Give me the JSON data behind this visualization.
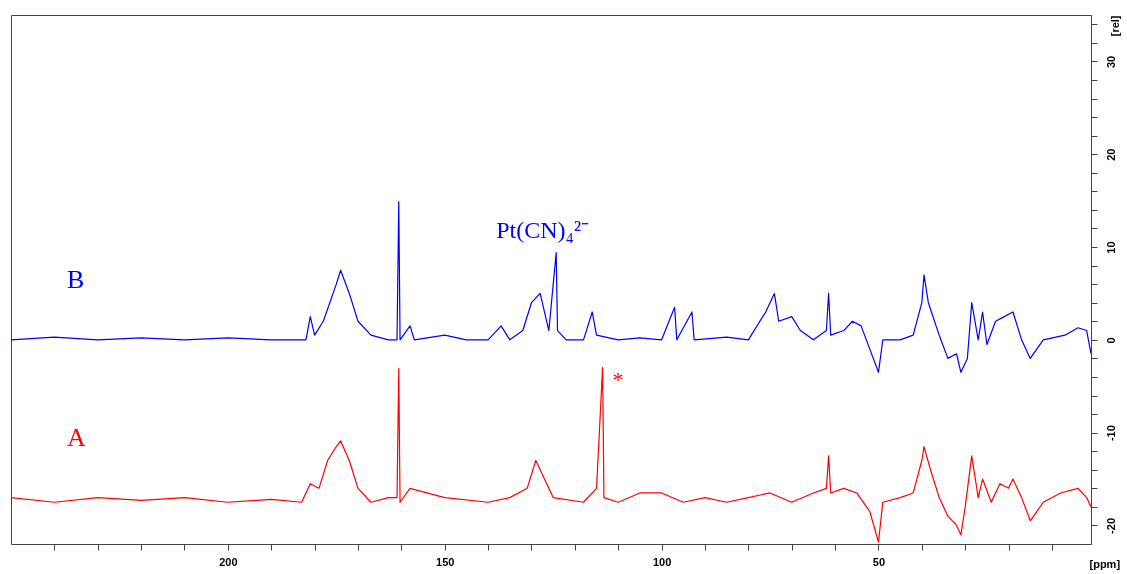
{
  "chart_data": {
    "type": "line",
    "xlabel": "[ppm]",
    "ylabel": "[rel]",
    "xlim": [
      250,
      1
    ],
    "ylim": [
      -22,
      35
    ],
    "xticks": [
      {
        "value": 240,
        "label": null
      },
      {
        "value": 230,
        "label": null
      },
      {
        "value": 220,
        "label": null
      },
      {
        "value": 210,
        "label": null
      },
      200,
      {
        "value": 190,
        "label": null
      },
      {
        "value": 180,
        "label": null
      },
      {
        "value": 170,
        "label": null
      },
      {
        "value": 160,
        "label": null
      },
      150,
      {
        "value": 140,
        "label": null
      },
      {
        "value": 130,
        "label": null
      },
      {
        "value": 120,
        "label": null
      },
      {
        "value": 110,
        "label": null
      },
      100,
      {
        "value": 90,
        "label": null
      },
      {
        "value": 80,
        "label": null
      },
      {
        "value": 70,
        "label": null
      },
      {
        "value": 60,
        "label": null
      },
      50,
      {
        "value": 40,
        "label": null
      },
      {
        "value": 30,
        "label": null
      },
      {
        "value": 20,
        "label": null
      },
      {
        "value": 10,
        "label": null
      }
    ],
    "yticks": [
      -20,
      {
        "value": -18,
        "label": null
      },
      {
        "value": -16,
        "label": null
      },
      {
        "value": -14,
        "label": null
      },
      {
        "value": -12,
        "label": null
      },
      -10,
      {
        "value": -8,
        "label": null
      },
      {
        "value": -6,
        "label": null
      },
      {
        "value": -4,
        "label": null
      },
      {
        "value": -2,
        "label": null
      },
      0,
      {
        "value": 2,
        "label": null
      },
      {
        "value": 4,
        "label": null
      },
      {
        "value": 6,
        "label": null
      },
      {
        "value": 8,
        "label": null
      },
      10,
      {
        "value": 12,
        "label": null
      },
      {
        "value": 14,
        "label": null
      },
      {
        "value": 16,
        "label": null
      },
      {
        "value": 18,
        "label": null
      },
      20,
      {
        "value": 22,
        "label": null
      },
      {
        "value": 24,
        "label": null
      },
      {
        "value": 26,
        "label": null
      },
      {
        "value": 28,
        "label": null
      },
      30,
      {
        "value": 32,
        "label": null
      },
      {
        "value": 34,
        "label": null
      }
    ],
    "grid": false,
    "legend": false,
    "marker": "none",
    "line_style": "solid",
    "annotations": [
      {
        "text": "Pt(CN)₄²⁻",
        "x": 124.3,
        "y": 9.4
      },
      {
        "text": "*",
        "x": 113.6,
        "y": -3.0
      }
    ],
    "series": [
      {
        "name": "B",
        "color": "#0000ff",
        "x": [
          250,
          240,
          230,
          220,
          210,
          200,
          190,
          182,
          181,
          180,
          178,
          175,
          174,
          172,
          170,
          167,
          163,
          161,
          160.6,
          160.3,
          158,
          157,
          150,
          145,
          140,
          137,
          135,
          132,
          130,
          128,
          126,
          124.3,
          124,
          122,
          118,
          116,
          115,
          110,
          105,
          100,
          97,
          96.5,
          93,
          92.5,
          85,
          80,
          76,
          75,
          74,
          73,
          70,
          68,
          65,
          62,
          61.5,
          61,
          58,
          56,
          54,
          52,
          50,
          49,
          45,
          42,
          40,
          39.5,
          38.5,
          36,
          34,
          32,
          31,
          29.5,
          28.5,
          27,
          26,
          25,
          23,
          21,
          19,
          17,
          15,
          12,
          7,
          4,
          2,
          1
        ],
        "values": [
          0,
          0.3,
          0,
          0.2,
          0,
          0.2,
          0,
          0,
          2.5,
          0.5,
          2,
          6,
          7.5,
          5,
          2,
          0.5,
          0,
          0,
          14.9,
          0,
          1.5,
          0,
          0.5,
          0,
          0,
          1.5,
          0,
          1,
          4,
          5,
          1,
          9.4,
          1,
          0,
          0,
          3,
          0.5,
          0,
          0.2,
          0,
          3.5,
          0,
          3,
          0,
          0.3,
          0,
          3,
          4,
          5,
          2,
          2.5,
          1,
          0,
          1,
          5,
          0.5,
          1,
          2,
          1.5,
          -1,
          -3.5,
          0,
          0,
          0.5,
          4,
          7,
          4,
          0.5,
          -2,
          -1.5,
          -3.5,
          -2,
          4,
          0,
          3,
          -0.5,
          2,
          2.5,
          3,
          0,
          -2,
          0,
          0.5,
          1.3,
          1,
          -1.5
        ]
      },
      {
        "name": "A",
        "color": "#ff0000",
        "x": [
          250,
          240,
          230,
          220,
          210,
          200,
          190,
          183,
          181,
          179,
          177,
          175,
          174,
          172,
          170,
          167,
          163,
          161,
          160.6,
          160.3,
          158,
          150,
          140,
          135,
          131,
          129,
          127,
          125,
          118,
          115,
          113.6,
          113.3,
          110,
          105,
          100,
          95,
          90,
          85,
          80,
          75,
          70,
          65,
          62,
          61.5,
          61,
          58,
          55,
          52,
          50,
          49,
          45,
          42,
          40,
          39.5,
          38,
          36,
          34,
          32,
          31,
          30,
          28.5,
          27,
          26,
          24,
          22,
          20,
          19,
          17,
          15,
          12,
          8,
          4,
          2,
          1
        ],
        "values": [
          -17,
          -17.5,
          -17,
          -17.3,
          -17,
          -17.5,
          -17.2,
          -17.5,
          -15.5,
          -16,
          -13,
          -11.5,
          -10.9,
          -13,
          -16,
          -17.5,
          -17,
          -17,
          -3.1,
          -17.5,
          -16,
          -17,
          -17.5,
          -17,
          -16,
          -13,
          -15,
          -17,
          -17.5,
          -16,
          -3.0,
          -17,
          -17.5,
          -16.5,
          -16.5,
          -17.5,
          -17,
          -17.5,
          -17,
          -16.5,
          -17.5,
          -16.5,
          -16,
          -12.5,
          -16.5,
          -16,
          -16.5,
          -18.5,
          -21.8,
          -17.5,
          -17,
          -16.5,
          -13,
          -11.5,
          -14,
          -17,
          -19,
          -20,
          -21,
          -18,
          -12.5,
          -17,
          -15,
          -17.5,
          -15.5,
          -16,
          -15,
          -17,
          -19.5,
          -17.5,
          -16.5,
          -16,
          -17,
          -18
        ]
      }
    ]
  }
}
